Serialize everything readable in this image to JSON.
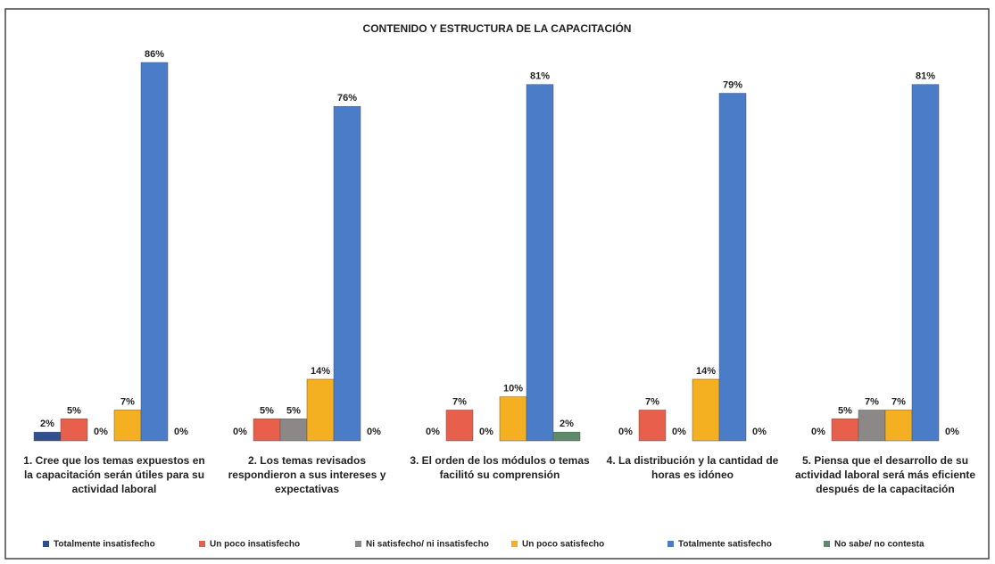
{
  "chart_data": {
    "type": "bar",
    "title": "CONTENIDO Y ESTRUCTURA DE LA CAPACITACIÓN",
    "categories": [
      "1. Cree que los temas expuestos en la capacitación serán útiles para su actividad laboral",
      "2. Los temas revisados respondieron a sus intereses y expectativas",
      "3. El orden de los módulos o temas facilitó su comprensión",
      "4. La distribución y la cantidad de horas es idóneo",
      "5. Piensa que el desarrollo de su actividad laboral será más eficiente después de la capacitación"
    ],
    "series": [
      {
        "name": "Totalmente insatisfecho",
        "color": "#2f4f8f",
        "values": [
          2,
          0,
          0,
          0,
          0
        ],
        "value_labels": [
          "2%",
          "0%",
          "0%",
          "0%",
          "0%"
        ]
      },
      {
        "name": "Un poco insatisfecho",
        "color": "#e8604c",
        "values": [
          5,
          5,
          7,
          7,
          5
        ],
        "value_labels": [
          "5%",
          "5%",
          "7%",
          "7%",
          "5%"
        ]
      },
      {
        "name": "Ni satisfecho/ ni insatisfecho",
        "color": "#8c8888",
        "values": [
          0,
          5,
          0,
          0,
          7
        ],
        "value_labels": [
          "0%",
          "5%",
          "0%",
          "0%",
          "7%"
        ]
      },
      {
        "name": "Un poco satisfecho",
        "color": "#f5b021",
        "values": [
          7,
          14,
          10,
          14,
          7
        ],
        "value_labels": [
          "7%",
          "14%",
          "10%",
          "14%",
          "7%"
        ]
      },
      {
        "name": "Totalmente satisfecho",
        "color": "#4a7cc7",
        "values": [
          86,
          76,
          81,
          79,
          81
        ],
        "value_labels": [
          "86%",
          "76%",
          "81%",
          "79%",
          "81%"
        ]
      },
      {
        "name": "No sabe/ no contesta",
        "color": "#5e8a6c",
        "values": [
          0,
          0,
          2,
          0,
          0
        ],
        "value_labels": [
          "0%",
          "0%",
          "2%",
          "0%",
          "0%"
        ]
      }
    ]
  }
}
